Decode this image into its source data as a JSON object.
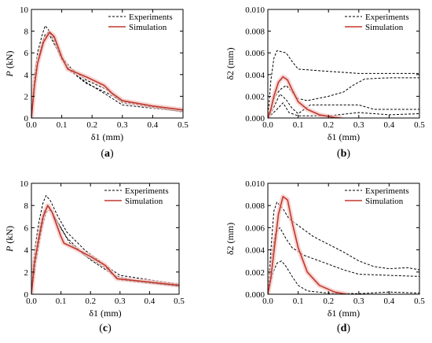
{
  "chart_data": [
    {
      "type": "line",
      "panel_label": "(a)",
      "xlabel": "δ1 (mm)",
      "ylabel": "P (kN)",
      "xlim": [
        0,
        0.5
      ],
      "ylim": [
        0,
        10
      ],
      "xticks": [
        "0.0",
        "0.1",
        "0.2",
        "0.3",
        "0.4",
        "0.5"
      ],
      "yticks": [
        "0",
        "2",
        "4",
        "6",
        "8",
        "10"
      ],
      "grid": false,
      "legend_position": "top-right",
      "series": [
        {
          "name": "Experiments",
          "color": "#000000",
          "style": "dashed",
          "curves": [
            [
              [
                0,
                0
              ],
              [
                0.01,
                3.8
              ],
              [
                0.02,
                6.0
              ],
              [
                0.035,
                7.6
              ],
              [
                0.045,
                8.5
              ],
              [
                0.055,
                8.2
              ],
              [
                0.07,
                7.3
              ],
              [
                0.1,
                5.4
              ],
              [
                0.13,
                4.3
              ],
              [
                0.18,
                3.2
              ],
              [
                0.25,
                2.3
              ],
              [
                0.3,
                1.5
              ],
              [
                0.4,
                1.1
              ],
              [
                0.5,
                0.7
              ]
            ],
            [
              [
                0,
                0
              ],
              [
                0.01,
                3.2
              ],
              [
                0.025,
                5.8
              ],
              [
                0.04,
                7.3
              ],
              [
                0.055,
                7.9
              ],
              [
                0.07,
                7.6
              ],
              [
                0.1,
                5.6
              ],
              [
                0.13,
                4.6
              ],
              [
                0.18,
                3.5
              ],
              [
                0.25,
                2.6
              ],
              [
                0.3,
                1.4
              ],
              [
                0.4,
                1.0
              ],
              [
                0.5,
                0.55
              ]
            ],
            [
              [
                0,
                0
              ],
              [
                0.012,
                3.5
              ],
              [
                0.03,
                6.3
              ],
              [
                0.045,
                7.7
              ],
              [
                0.06,
                7.6
              ],
              [
                0.085,
                6.3
              ],
              [
                0.12,
                4.6
              ],
              [
                0.18,
                3.3
              ],
              [
                0.25,
                2.1
              ],
              [
                0.3,
                1.2
              ],
              [
                0.4,
                0.9
              ],
              [
                0.5,
                0.6
              ]
            ]
          ]
        },
        {
          "name": "Simulation",
          "color": "#c0392b",
          "style": "solid",
          "curves": [
            [
              [
                0,
                0
              ],
              [
                0.01,
                3.0
              ],
              [
                0.02,
                5.0
              ],
              [
                0.04,
                7.0
              ],
              [
                0.06,
                7.9
              ],
              [
                0.075,
                7.5
              ],
              [
                0.1,
                5.6
              ],
              [
                0.12,
                4.5
              ],
              [
                0.18,
                3.8
              ],
              [
                0.24,
                3.0
              ],
              [
                0.265,
                2.3
              ],
              [
                0.3,
                1.6
              ],
              [
                0.4,
                1.1
              ],
              [
                0.5,
                0.75
              ]
            ]
          ]
        }
      ]
    },
    {
      "type": "line",
      "panel_label": "(b)",
      "xlabel": "δ1 (mm)",
      "ylabel": "δ2 (mm)",
      "xlim": [
        0,
        0.5
      ],
      "ylim": [
        0,
        0.01
      ],
      "xticks": [
        "0.0",
        "0.1",
        "0.2",
        "0.3",
        "0.4",
        "0.5"
      ],
      "yticks": [
        "0.000",
        "0.002",
        "0.004",
        "0.006",
        "0.008",
        "0.010"
      ],
      "grid": false,
      "legend_position": "top-right",
      "series": [
        {
          "name": "Experiments",
          "color": "#000000",
          "style": "dashed",
          "curves": [
            [
              [
                0,
                0
              ],
              [
                0.01,
                0.0035
              ],
              [
                0.02,
                0.0055
              ],
              [
                0.03,
                0.0062
              ],
              [
                0.06,
                0.006
              ],
              [
                0.08,
                0.0052
              ],
              [
                0.1,
                0.0045
              ],
              [
                0.2,
                0.0043
              ],
              [
                0.25,
                0.0042
              ],
              [
                0.3,
                0.0041
              ],
              [
                0.5,
                0.0041
              ]
            ],
            [
              [
                0,
                0
              ],
              [
                0.02,
                0.0018
              ],
              [
                0.04,
                0.0026
              ],
              [
                0.06,
                0.003
              ],
              [
                0.08,
                0.0024
              ],
              [
                0.1,
                0.0018
              ],
              [
                0.13,
                0.0016
              ],
              [
                0.2,
                0.002
              ],
              [
                0.25,
                0.0024
              ],
              [
                0.28,
                0.003
              ],
              [
                0.32,
                0.0036
              ],
              [
                0.4,
                0.0037
              ],
              [
                0.5,
                0.0037
              ]
            ],
            [
              [
                0,
                0
              ],
              [
                0.02,
                0.001
              ],
              [
                0.04,
                0.0022
              ],
              [
                0.06,
                0.0017
              ],
              [
                0.08,
                0.0009
              ],
              [
                0.1,
                0.0004
              ],
              [
                0.14,
                0.0012
              ],
              [
                0.2,
                0.0012
              ],
              [
                0.3,
                0.0012
              ],
              [
                0.35,
                0.0008
              ],
              [
                0.5,
                0.0008
              ]
            ],
            [
              [
                0,
                0
              ],
              [
                0.03,
                0.0008
              ],
              [
                0.05,
                0.0014
              ],
              [
                0.07,
                0.0005
              ],
              [
                0.1,
                0.0002
              ],
              [
                0.2,
                0.0002
              ],
              [
                0.3,
                0.0005
              ],
              [
                0.4,
                0.0003
              ],
              [
                0.5,
                0.0004
              ]
            ]
          ]
        },
        {
          "name": "Simulation",
          "color": "#c0392b",
          "style": "solid",
          "curves": [
            [
              [
                0,
                0
              ],
              [
                0.01,
                0.0008
              ],
              [
                0.02,
                0.002
              ],
              [
                0.035,
                0.0033
              ],
              [
                0.05,
                0.0038
              ],
              [
                0.065,
                0.0035
              ],
              [
                0.08,
                0.0026
              ],
              [
                0.1,
                0.0015
              ],
              [
                0.13,
                0.0008
              ],
              [
                0.17,
                0.0003
              ],
              [
                0.22,
                5e-05
              ],
              [
                0.24,
                0
              ]
            ]
          ]
        }
      ]
    },
    {
      "type": "line",
      "panel_label": "(c)",
      "xlabel": "δ1 (mm)",
      "ylabel": "P (kN)",
      "xlim": [
        0,
        0.5
      ],
      "ylim": [
        0,
        10
      ],
      "xticks": [
        "0.0",
        "0.1",
        "0.2",
        "0.3",
        "0.4",
        "0.5"
      ],
      "yticks": [
        "0",
        "2",
        "4",
        "6",
        "8",
        "10"
      ],
      "grid": false,
      "legend_position": "top-right",
      "series": [
        {
          "name": "Experiments",
          "color": "#000000",
          "style": "dashed",
          "curves": [
            [
              [
                0,
                0
              ],
              [
                0.01,
                3.8
              ],
              [
                0.025,
                6.5
              ],
              [
                0.04,
                8.3
              ],
              [
                0.05,
                8.9
              ],
              [
                0.065,
                8.4
              ],
              [
                0.09,
                7.0
              ],
              [
                0.12,
                5.6
              ],
              [
                0.18,
                4.0
              ],
              [
                0.25,
                2.6
              ],
              [
                0.3,
                1.7
              ],
              [
                0.4,
                1.3
              ],
              [
                0.5,
                0.9
              ]
            ],
            [
              [
                0,
                0
              ],
              [
                0.012,
                3.3
              ],
              [
                0.03,
                6.2
              ],
              [
                0.045,
                7.6
              ],
              [
                0.06,
                7.9
              ],
              [
                0.08,
                6.9
              ],
              [
                0.12,
                5.1
              ],
              [
                0.18,
                3.5
              ],
              [
                0.25,
                2.4
              ],
              [
                0.3,
                1.3
              ],
              [
                0.4,
                1.0
              ],
              [
                0.5,
                0.75
              ]
            ],
            [
              [
                0,
                0
              ],
              [
                0.015,
                3.0
              ],
              [
                0.035,
                6.0
              ],
              [
                0.05,
                7.4
              ],
              [
                0.065,
                7.6
              ],
              [
                0.09,
                6.4
              ],
              [
                0.13,
                4.6
              ],
              [
                0.2,
                3.1
              ],
              [
                0.28,
                1.7
              ],
              [
                0.35,
                1.2
              ],
              [
                0.5,
                0.7
              ]
            ]
          ]
        },
        {
          "name": "Simulation",
          "color": "#c0392b",
          "style": "solid",
          "curves": [
            [
              [
                0,
                0
              ],
              [
                0.01,
                2.8
              ],
              [
                0.025,
                5.0
              ],
              [
                0.04,
                7.0
              ],
              [
                0.055,
                8.0
              ],
              [
                0.07,
                7.4
              ],
              [
                0.1,
                5.2
              ],
              [
                0.11,
                4.6
              ],
              [
                0.15,
                4.1
              ],
              [
                0.2,
                3.4
              ],
              [
                0.25,
                2.6
              ],
              [
                0.29,
                1.4
              ],
              [
                0.4,
                1.1
              ],
              [
                0.5,
                0.8
              ]
            ]
          ]
        }
      ]
    },
    {
      "type": "line",
      "panel_label": "(d)",
      "xlabel": "δ1 (mm)",
      "ylabel": "δ2 (mm)",
      "xlim": [
        0,
        0.5
      ],
      "ylim": [
        0,
        0.01
      ],
      "xticks": [
        "0.0",
        "0.1",
        "0.2",
        "0.3",
        "0.4",
        "0.5"
      ],
      "yticks": [
        "0.000",
        "0.002",
        "0.004",
        "0.006",
        "0.008",
        "0.010"
      ],
      "grid": false,
      "legend_position": "top-right",
      "series": [
        {
          "name": "Experiments",
          "color": "#000000",
          "style": "dashed",
          "curves": [
            [
              [
                0,
                0
              ],
              [
                0.01,
                0.004
              ],
              [
                0.02,
                0.0075
              ],
              [
                0.03,
                0.0083
              ],
              [
                0.05,
                0.0077
              ],
              [
                0.07,
                0.0068
              ],
              [
                0.1,
                0.0062
              ],
              [
                0.15,
                0.0052
              ],
              [
                0.2,
                0.0045
              ],
              [
                0.25,
                0.0038
              ],
              [
                0.3,
                0.003
              ],
              [
                0.35,
                0.0025
              ],
              [
                0.4,
                0.0023
              ],
              [
                0.46,
                0.0024
              ],
              [
                0.5,
                0.0022
              ]
            ],
            [
              [
                0,
                0
              ],
              [
                0.01,
                0.003
              ],
              [
                0.025,
                0.0055
              ],
              [
                0.04,
                0.006
              ],
              [
                0.06,
                0.005
              ],
              [
                0.08,
                0.0042
              ],
              [
                0.12,
                0.0035
              ],
              [
                0.2,
                0.0027
              ],
              [
                0.25,
                0.0022
              ],
              [
                0.3,
                0.0018
              ],
              [
                0.4,
                0.0017
              ],
              [
                0.5,
                0.0016
              ]
            ],
            [
              [
                0,
                0
              ],
              [
                0.015,
                0.0018
              ],
              [
                0.03,
                0.0028
              ],
              [
                0.045,
                0.003
              ],
              [
                0.06,
                0.0025
              ],
              [
                0.08,
                0.0016
              ],
              [
                0.1,
                0.0008
              ],
              [
                0.13,
                0.0003
              ],
              [
                0.2,
                0.0001
              ],
              [
                0.3,
                5e-05
              ],
              [
                0.4,
                0.0002
              ],
              [
                0.5,
                0.0001
              ]
            ]
          ]
        },
        {
          "name": "Simulation",
          "color": "#c0392b",
          "style": "solid",
          "curves": [
            [
              [
                0,
                0
              ],
              [
                0.01,
                0.0015
              ],
              [
                0.02,
                0.0038
              ],
              [
                0.035,
                0.0072
              ],
              [
                0.05,
                0.0088
              ],
              [
                0.065,
                0.0085
              ],
              [
                0.08,
                0.0065
              ],
              [
                0.1,
                0.0042
              ],
              [
                0.13,
                0.002
              ],
              [
                0.17,
                0.0008
              ],
              [
                0.22,
                0.0002
              ],
              [
                0.26,
                0
              ]
            ]
          ]
        }
      ]
    }
  ]
}
